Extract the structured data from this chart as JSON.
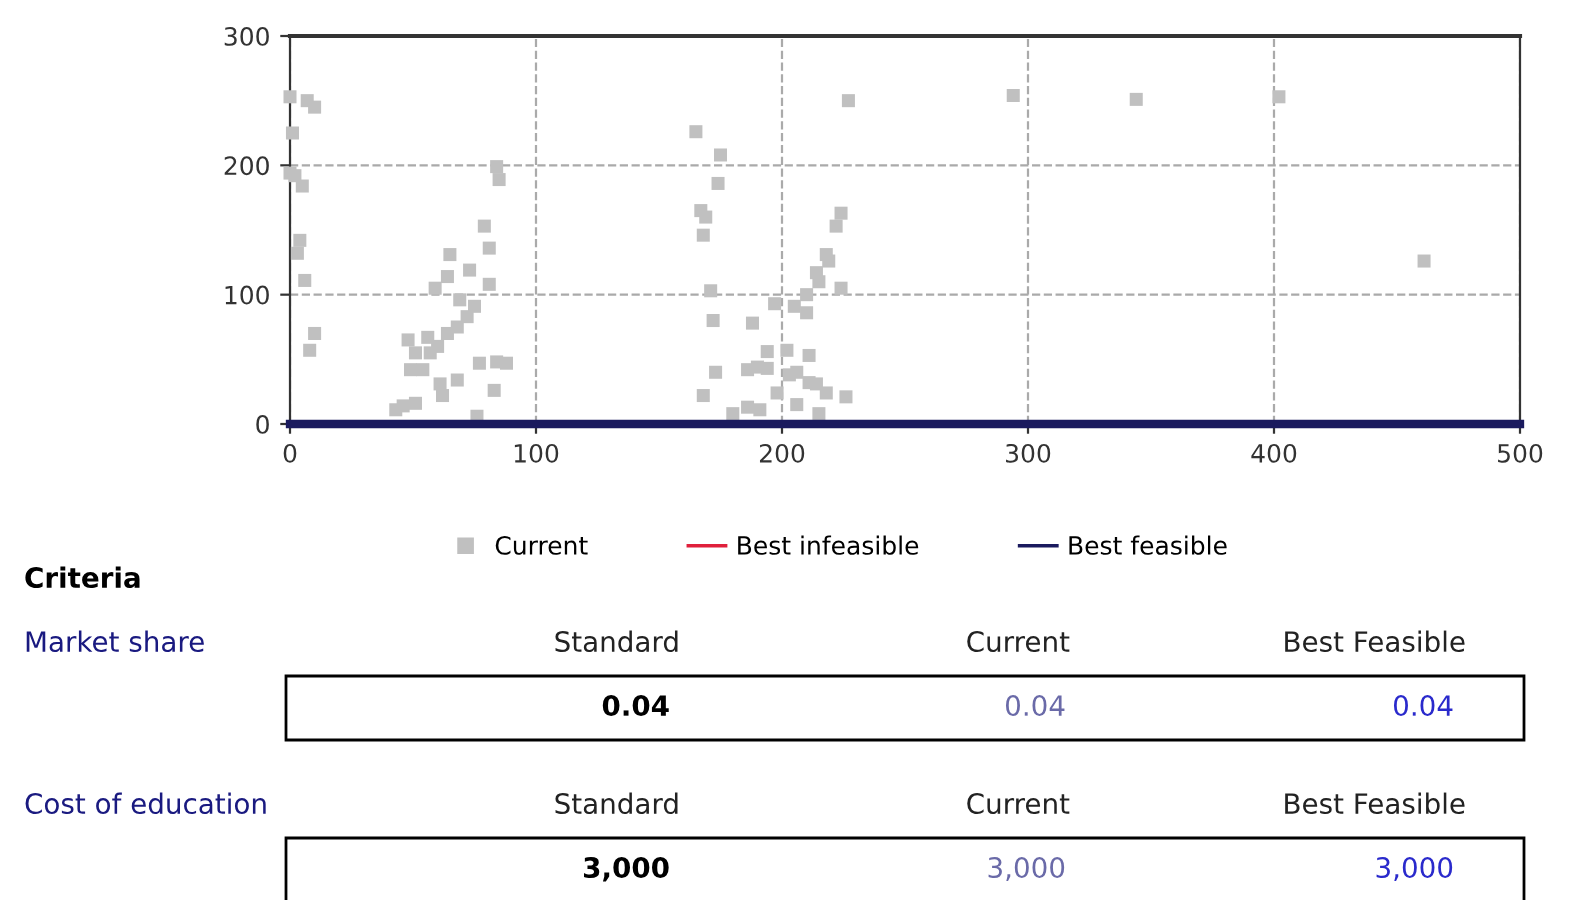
{
  "chart_data": [
    {
      "type": "scatter",
      "xlim": [
        0,
        500
      ],
      "ylim": [
        0,
        300
      ],
      "xticks": [
        0,
        100,
        200,
        300,
        400,
        500
      ],
      "yticks": [
        0,
        100,
        200,
        300
      ],
      "grid": true,
      "legend": "bottom",
      "series": [
        {
          "name": "Current",
          "type": "scatter",
          "color": "#c0c0c0",
          "marker": "square",
          "x": [
            0,
            7,
            10,
            1,
            0,
            2,
            5,
            4,
            3,
            6,
            10,
            8,
            84,
            85,
            79,
            81,
            65,
            73,
            64,
            59,
            81,
            69,
            75,
            72,
            68,
            64,
            56,
            48,
            51,
            57,
            60,
            49,
            54,
            61,
            68,
            62,
            77,
            84,
            88,
            83,
            46,
            51,
            43,
            76,
            227,
            294,
            344,
            402,
            461,
            165,
            175,
            174,
            167,
            169,
            168,
            224,
            222,
            218,
            219,
            214,
            215,
            224,
            171,
            210,
            197,
            205,
            210,
            172,
            188,
            194,
            202,
            211,
            173,
            186,
            190,
            194,
            203,
            206,
            211,
            214,
            218,
            226,
            168,
            198,
            206,
            215,
            186,
            191,
            180
          ],
          "values": [
            253,
            250,
            245,
            225,
            194,
            192,
            184,
            142,
            132,
            111,
            70,
            57,
            199,
            189,
            153,
            136,
            131,
            119,
            114,
            105,
            108,
            96,
            91,
            83,
            75,
            70,
            67,
            65,
            55,
            55,
            60,
            42,
            42,
            31,
            34,
            22,
            47,
            48,
            47,
            26,
            14,
            16,
            11,
            6,
            250,
            254,
            251,
            253,
            126,
            226,
            208,
            186,
            165,
            160,
            146,
            163,
            153,
            131,
            126,
            117,
            110,
            105,
            103,
            100,
            93,
            91,
            86,
            80,
            78,
            56,
            57,
            53,
            40,
            42,
            44,
            43,
            38,
            40,
            32,
            31,
            24,
            21,
            22,
            24,
            15,
            8,
            13,
            11,
            8
          ]
        },
        {
          "name": "Best infeasible",
          "type": "line",
          "color": "#e0203c"
        },
        {
          "name": "Best feasible",
          "type": "line",
          "color": "#1a1a5e",
          "x": [
            0,
            500
          ],
          "values": [
            0,
            0
          ]
        }
      ]
    },
    {
      "type": "other",
      "title": "Criteria",
      "annotations": [
        "Market share",
        "Standard",
        "Current",
        "Best Feasible",
        "0.04",
        "0.04",
        "0.04",
        "Cost of education",
        "Standard",
        "Current",
        "Best Feasible",
        "3,000",
        "3,000",
        "3,000"
      ]
    }
  ]
}
